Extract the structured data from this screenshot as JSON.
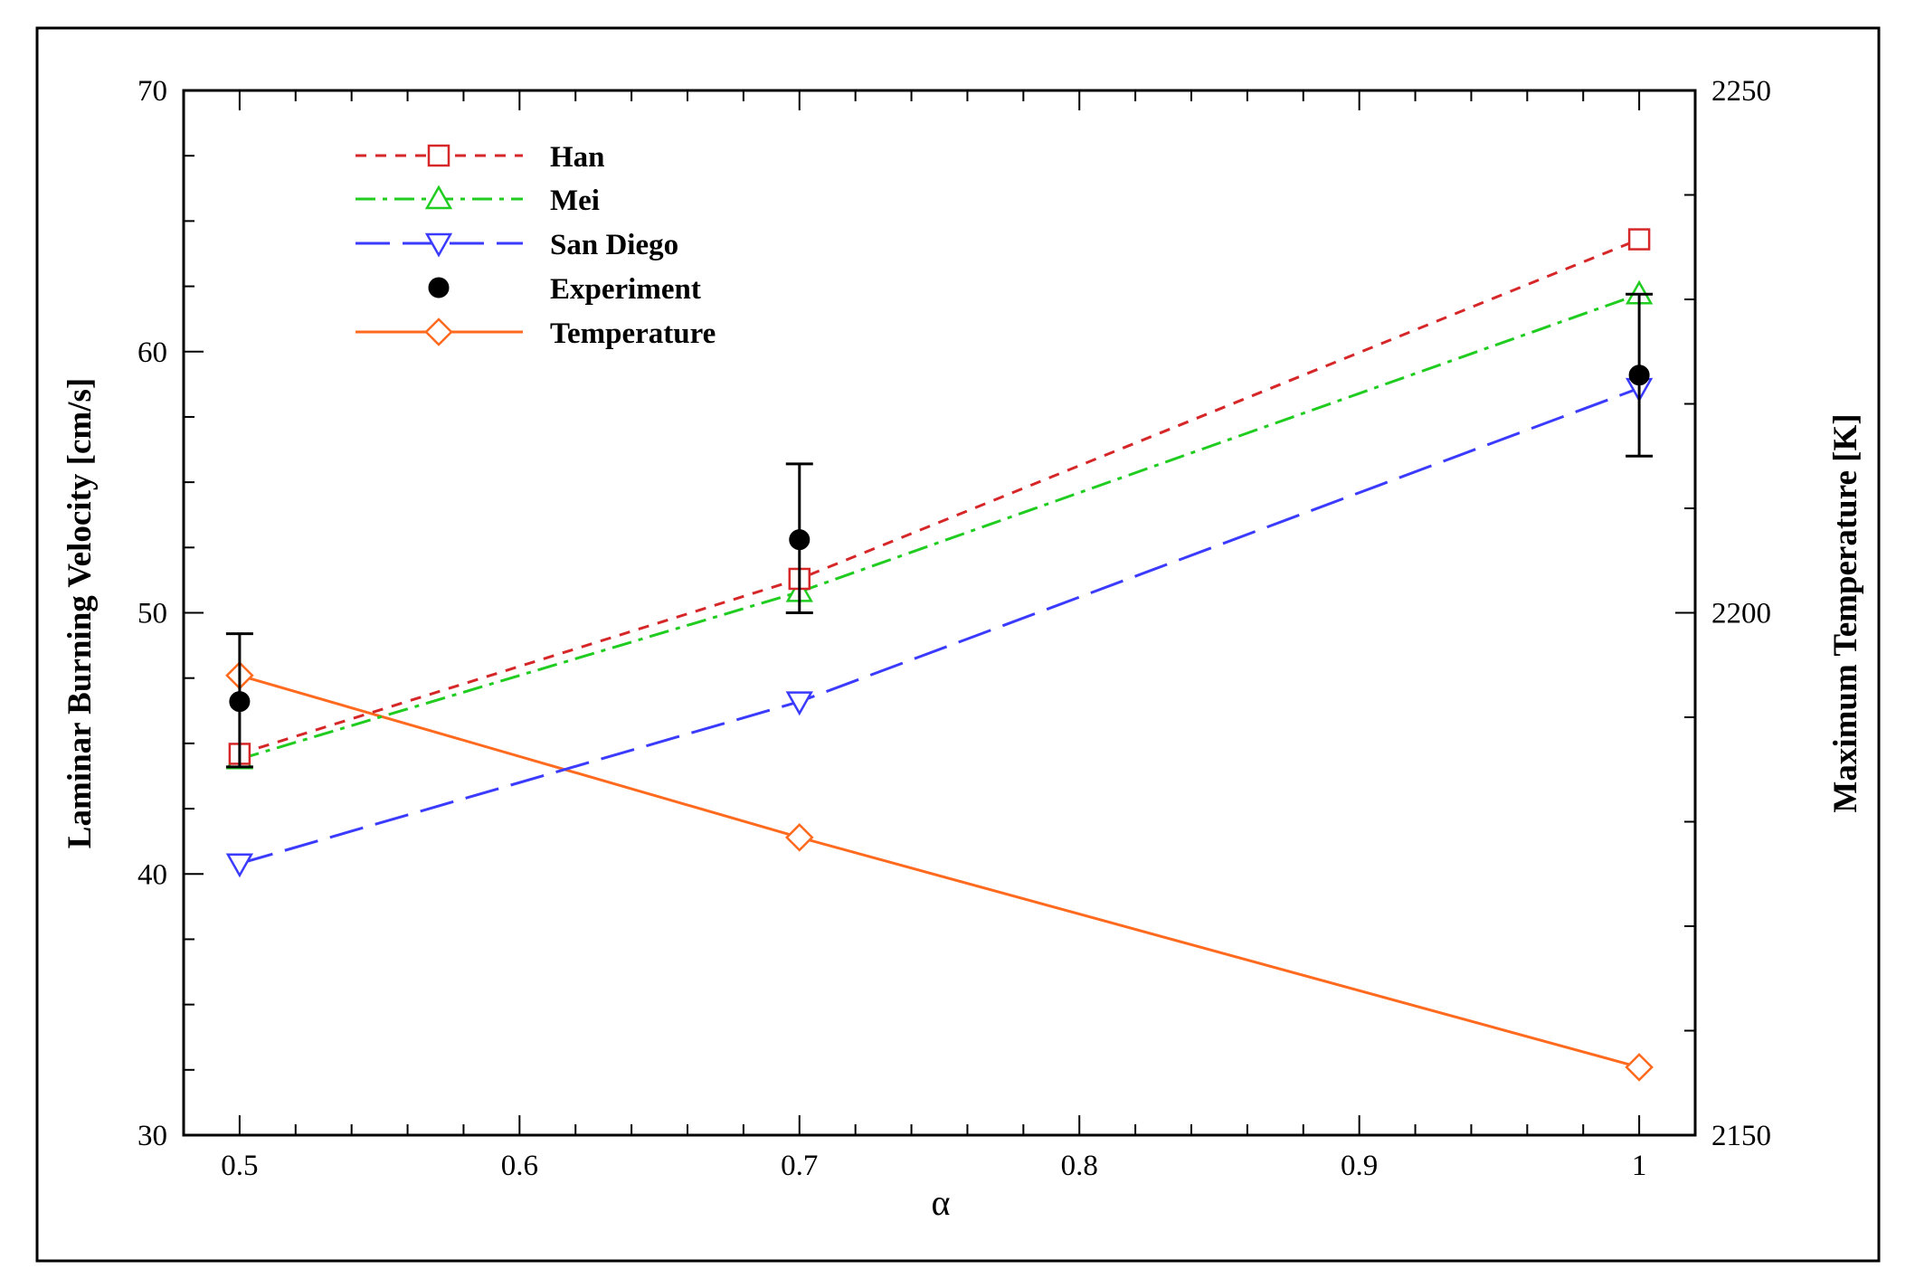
{
  "chart_data": {
    "type": "line",
    "xlabel": "α",
    "ylabel": "Laminar Burning Velocity [cm/s]",
    "y2label": "Maximum Temperature [K]",
    "xlim": [
      0.48,
      1.02
    ],
    "ylim": [
      30,
      70
    ],
    "y2lim": [
      2150,
      2250
    ],
    "x_ticks": [
      0.5,
      0.6,
      0.7,
      0.8,
      0.9,
      1
    ],
    "x_tick_labels": [
      "0.5",
      "0.6",
      "0.7",
      "0.8",
      "0.9",
      "1"
    ],
    "y_ticks": [
      30,
      40,
      50,
      60,
      70
    ],
    "y_tick_labels": [
      "30",
      "40",
      "50",
      "60",
      "70"
    ],
    "y2_ticks": [
      2150,
      2200,
      2250
    ],
    "y2_tick_labels": [
      "2150",
      "2200",
      "2250"
    ],
    "legend_position": "top-left",
    "series": [
      {
        "name": "Han",
        "axis": "left",
        "marker": "square",
        "line": "dashed",
        "color": "#d62728",
        "x": [
          0.5,
          0.7,
          1.0
        ],
        "y": [
          44.6,
          51.3,
          64.3
        ]
      },
      {
        "name": "Mei",
        "axis": "left",
        "marker": "triangle-up",
        "line": "dashdot",
        "color": "#1fcc1f",
        "x": [
          0.5,
          0.7,
          1.0
        ],
        "y": [
          44.4,
          50.8,
          62.2
        ]
      },
      {
        "name": "San Diego",
        "axis": "left",
        "marker": "triangle-down",
        "line": "longdash",
        "color": "#3b3bff",
        "x": [
          0.5,
          0.7,
          1.0
        ],
        "y": [
          40.4,
          46.6,
          58.6
        ]
      },
      {
        "name": "Experiment",
        "axis": "left",
        "marker": "circle-filled",
        "line": "none",
        "color": "#000000",
        "x": [
          0.5,
          0.7,
          1.0
        ],
        "y": [
          46.6,
          52.8,
          59.1
        ],
        "err_low": [
          44.1,
          50.0,
          56.0
        ],
        "err_high": [
          49.2,
          55.7,
          62.2
        ]
      },
      {
        "name": "Temperature",
        "axis": "right",
        "marker": "diamond",
        "line": "solid",
        "color": "#ff6a1f",
        "x": [
          0.5,
          0.7,
          1.0
        ],
        "y": [
          2194,
          2178.5,
          2156.5
        ]
      }
    ]
  }
}
